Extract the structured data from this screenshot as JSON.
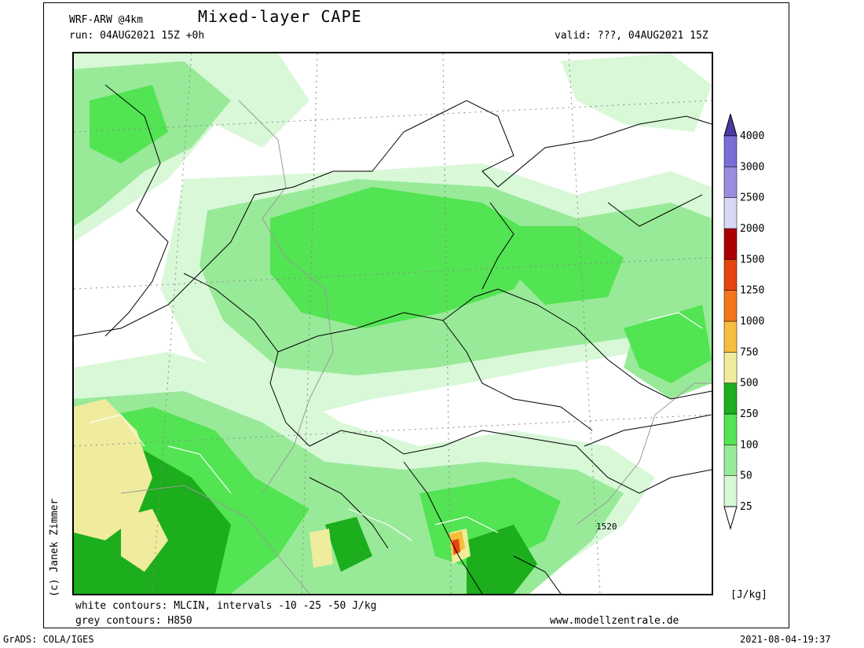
{
  "header": {
    "model": "WRF-ARW @4km",
    "title": "Mixed-layer CAPE",
    "run": "run: 04AUG2021 15Z +0h",
    "valid": "valid: ???, 04AUG2021 15Z"
  },
  "footer": {
    "white_contours": "white contours: MLCIN, intervals -10 -25 -50 J/kg",
    "grey_contours": "grey contours: H850",
    "website": "www.modellzentrale.de",
    "grads": "GrADS: COLA/IGES",
    "timestamp": "2021-08-04-19:37"
  },
  "credit": "(c) Janek Zimmer",
  "map": {
    "contour_label": "1520"
  },
  "legend": {
    "unit": "[J/kg]",
    "levels": [
      {
        "label": "25",
        "color": "#d8f8d8"
      },
      {
        "label": "50",
        "color": "#98ea98"
      },
      {
        "label": "100",
        "color": "#52e452"
      },
      {
        "label": "250",
        "color": "#1cae1c"
      },
      {
        "label": "500",
        "color": "#f0ec9e"
      },
      {
        "label": "750",
        "color": "#f7bd3c"
      },
      {
        "label": "1000",
        "color": "#f4761a"
      },
      {
        "label": "1250",
        "color": "#e6440f"
      },
      {
        "label": "1500",
        "color": "#aa0000"
      },
      {
        "label": "2000",
        "color": "#d8d8f5"
      },
      {
        "label": "2500",
        "color": "#9a8ee0"
      },
      {
        "label": "3000",
        "color": "#7a6ed6"
      },
      {
        "label": "4000",
        "color": "#4a3aa6"
      }
    ]
  }
}
